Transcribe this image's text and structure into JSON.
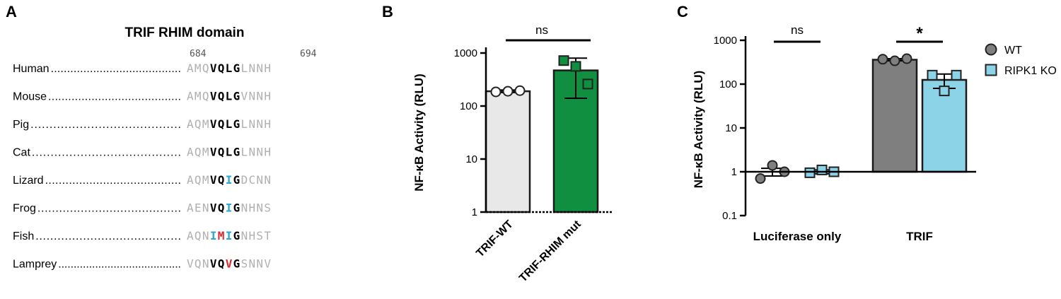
{
  "panel_a": {
    "letter": "A",
    "title": "TRIF RHIM domain",
    "pos_start": "684",
    "pos_end": "694",
    "dots": "........................................................",
    "colors": {
      "grey": "#b0b0b0",
      "bold": "#000000",
      "blue": "#2aa6d8",
      "red": "#e0262b"
    },
    "rows": [
      {
        "species": "Human",
        "seq": [
          [
            "AMQ",
            "grey"
          ],
          [
            "VQLG",
            "bold"
          ],
          [
            "LNNH",
            "grey"
          ]
        ]
      },
      {
        "species": "Mouse",
        "seq": [
          [
            "AMQ",
            "grey"
          ],
          [
            "VQLG",
            "bold"
          ],
          [
            "VNNH",
            "grey"
          ]
        ]
      },
      {
        "species": "Pig",
        "seq": [
          [
            "AQM",
            "grey"
          ],
          [
            "VQLG",
            "bold"
          ],
          [
            "LNNH",
            "grey"
          ]
        ]
      },
      {
        "species": "Cat",
        "seq": [
          [
            "AQM",
            "grey"
          ],
          [
            "VQLG",
            "bold"
          ],
          [
            "LNNH",
            "grey"
          ]
        ]
      },
      {
        "species": "Lizard",
        "seq": [
          [
            "AQM",
            "grey"
          ],
          [
            "VQ",
            "bold"
          ],
          [
            "I",
            "blue"
          ],
          [
            "G",
            "bold"
          ],
          [
            "DCNN",
            "grey"
          ]
        ]
      },
      {
        "species": "Frog",
        "seq": [
          [
            "AEN",
            "grey"
          ],
          [
            "VQ",
            "bold"
          ],
          [
            "I",
            "blue"
          ],
          [
            "G",
            "bold"
          ],
          [
            "NHNS",
            "grey"
          ]
        ]
      },
      {
        "species": "Fish",
        "seq": [
          [
            "AQN",
            "grey"
          ],
          [
            "I",
            "blue"
          ],
          [
            "M",
            "red"
          ],
          [
            "I",
            "blue"
          ],
          [
            "G",
            "bold"
          ],
          [
            "NHST",
            "grey"
          ]
        ]
      },
      {
        "species": "Lamprey",
        "seq": [
          [
            "VQN",
            "grey"
          ],
          [
            "VQ",
            "bold"
          ],
          [
            "V",
            "red"
          ],
          [
            "G",
            "bold"
          ],
          [
            "SNNV",
            "grey"
          ]
        ]
      }
    ]
  },
  "chart_data": [
    {
      "panel": "B",
      "type": "bar",
      "title": "",
      "xlabel": "",
      "ylabel": "NF-κB Activity (RLU)",
      "yscale": "log",
      "ylim": [
        1,
        1000
      ],
      "yticks": [
        1,
        10,
        100,
        1000
      ],
      "ytick_labels": [
        "1",
        "10",
        "100",
        "1000"
      ],
      "categories": [
        "TRIF-WT",
        "TRIF-RHIM mut"
      ],
      "values": [
        190,
        470
      ],
      "error": [
        10,
        330
      ],
      "points": [
        [
          185,
          190,
          195
        ],
        [
          720,
          560,
          260
        ]
      ],
      "colors": [
        "#e8e8e8",
        "#0f8f3f"
      ],
      "marker": [
        "circle",
        "square"
      ],
      "marker_fill": [
        "#ffffff",
        "#0f8f3f"
      ],
      "significance": [
        {
          "label": "ns",
          "between": [
            0,
            1
          ]
        }
      ]
    },
    {
      "panel": "C",
      "type": "bar",
      "title": "",
      "xlabel": "",
      "ylabel": "NF-κB Activity (RLU)",
      "yscale": "log",
      "ylim": [
        0.1,
        1000
      ],
      "yticks": [
        0.1,
        1,
        10,
        100,
        1000
      ],
      "ytick_labels": [
        "0.1",
        "1",
        "10",
        "100",
        "1000"
      ],
      "categories": [
        "Luciferase only",
        "TRIF"
      ],
      "series": [
        {
          "name": "WT",
          "values": [
            1.0,
            360
          ],
          "error": [
            0.2,
            20
          ],
          "points": [
            [
              0.7,
              1.4,
              1.0
            ],
            [
              370,
              340,
              380
            ]
          ],
          "color": "#7f7f7f",
          "marker": "circle"
        },
        {
          "name": "RIPK1 KO",
          "values": [
            1.0,
            125
          ],
          "error": [
            0.1,
            45
          ],
          "points": [
            [
              0.95,
              1.1,
              1.0
            ],
            [
              160,
              70,
              160
            ]
          ],
          "color": "#8dd3e8",
          "marker": "square"
        }
      ],
      "legend": "top-right",
      "significance": [
        {
          "label": "ns",
          "category": 0
        },
        {
          "label": "*",
          "category": 1
        }
      ]
    }
  ]
}
